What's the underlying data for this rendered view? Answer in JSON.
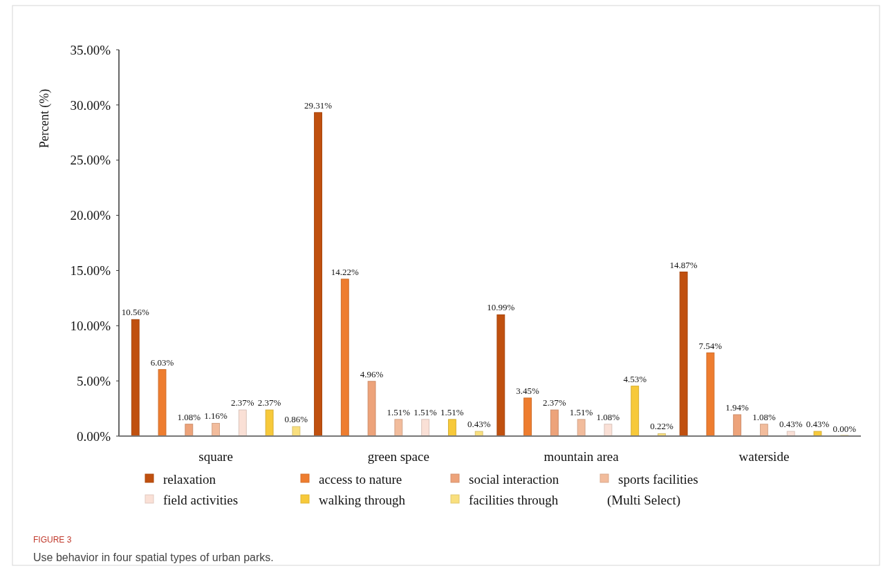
{
  "chart_data": {
    "type": "bar",
    "title": "FIGURE 3",
    "subtitle": "Use behavior in four spatial types of urban parks.",
    "ylabel": "Percent (%)",
    "categories": [
      "square",
      "green space",
      "mountain area",
      "waterside"
    ],
    "series": [
      {
        "name": "relaxation",
        "color": "#c0500f",
        "values": [
          10.56,
          29.31,
          10.99,
          14.87
        ],
        "value_labels": [
          "10.56%",
          "29.31%",
          "10.99%",
          "14.87%"
        ]
      },
      {
        "name": "access to nature",
        "color": "#ee7d2f",
        "values": [
          6.03,
          14.22,
          3.45,
          7.54
        ],
        "value_labels": [
          "6.03%",
          "14.22%",
          "3.45%",
          "7.54%"
        ]
      },
      {
        "name": "social interaction",
        "color": "#eda37a",
        "values": [
          1.08,
          4.96,
          2.37,
          1.94
        ],
        "value_labels": [
          "1.08%",
          "4.96%",
          "2.37%",
          "1.94%"
        ]
      },
      {
        "name": "sports facilities",
        "color": "#f2bc9c",
        "values": [
          1.16,
          1.51,
          1.51,
          1.08
        ],
        "value_labels": [
          "1.16%",
          "1.51%",
          "1.51%",
          "1.08%"
        ]
      },
      {
        "name": "field activities",
        "color": "#fae0d6",
        "values": [
          2.37,
          1.51,
          1.08,
          0.43
        ],
        "value_labels": [
          "2.37%",
          "1.51%",
          "1.08%",
          "0.43%"
        ]
      },
      {
        "name": "walking through",
        "color": "#f7c93a",
        "values": [
          2.37,
          1.51,
          4.53,
          0.43
        ],
        "value_labels": [
          "2.37%",
          "1.51%",
          "4.53%",
          "0.43%"
        ]
      },
      {
        "name": "facilities through",
        "color": "#f9df7e",
        "values": [
          0.86,
          0.43,
          0.22,
          0.0
        ],
        "value_labels": [
          "0.86%",
          "0.43%",
          "0.22%",
          "0.00%"
        ]
      }
    ],
    "ylim": [
      0,
      35
    ],
    "yticks": [
      {
        "value": 0,
        "label": "0.00%"
      },
      {
        "value": 5,
        "label": "5.00%"
      },
      {
        "value": 10,
        "label": "10.00%"
      },
      {
        "value": 15,
        "label": "15.00%"
      },
      {
        "value": 20,
        "label": "20.00%"
      },
      {
        "value": 25,
        "label": "25.00%"
      },
      {
        "value": 30,
        "label": "30.00%"
      },
      {
        "value": 35,
        "label": "35.00%"
      }
    ],
    "grid": false,
    "legend": "bottom",
    "annotations": [
      "(Multi Select)"
    ]
  }
}
